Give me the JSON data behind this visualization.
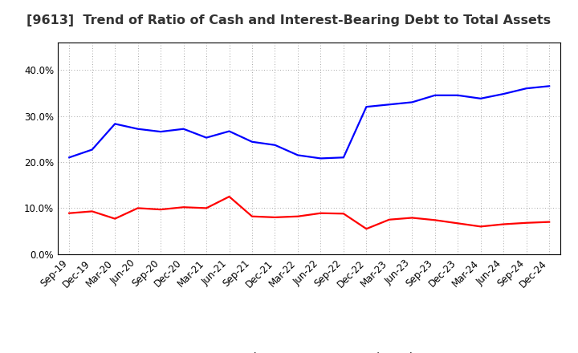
{
  "title": "[9613]  Trend of Ratio of Cash and Interest-Bearing Debt to Total Assets",
  "x_labels": [
    "Sep-19",
    "Dec-19",
    "Mar-20",
    "Jun-20",
    "Sep-20",
    "Dec-20",
    "Mar-21",
    "Jun-21",
    "Sep-21",
    "Dec-21",
    "Mar-22",
    "Jun-22",
    "Sep-22",
    "Dec-22",
    "Mar-23",
    "Jun-23",
    "Sep-23",
    "Dec-23",
    "Mar-24",
    "Jun-24",
    "Sep-24",
    "Dec-24"
  ],
  "cash": [
    0.089,
    0.093,
    0.077,
    0.1,
    0.097,
    0.102,
    0.1,
    0.125,
    0.082,
    0.08,
    0.082,
    0.089,
    0.088,
    0.055,
    0.075,
    0.079,
    0.074,
    0.067,
    0.06,
    0.065,
    0.068,
    0.07
  ],
  "debt": [
    0.21,
    0.227,
    0.283,
    0.272,
    0.266,
    0.272,
    0.253,
    0.267,
    0.244,
    0.237,
    0.215,
    0.208,
    0.21,
    0.32,
    0.325,
    0.33,
    0.345,
    0.345,
    0.338,
    0.348,
    0.36,
    0.365
  ],
  "cash_color": "#ff0000",
  "debt_color": "#0000ff",
  "background_color": "#ffffff",
  "plot_bg_color": "#ffffff",
  "ylim": [
    0.0,
    0.46
  ],
  "yticks": [
    0.0,
    0.1,
    0.2,
    0.3,
    0.4
  ],
  "grid_color": "#888888",
  "legend_cash": "Cash",
  "legend_debt": "Interest-Bearing Debt",
  "line_width": 1.6,
  "title_fontsize": 11.5,
  "tick_fontsize": 8.5
}
